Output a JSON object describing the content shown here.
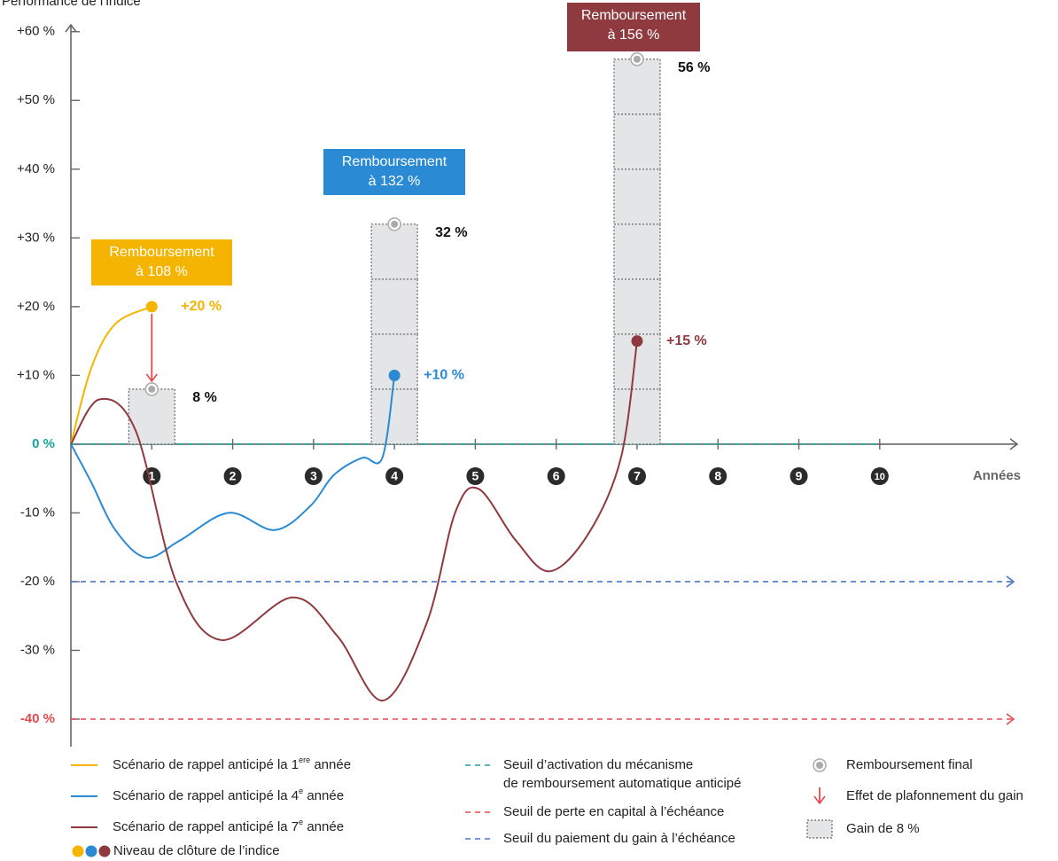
{
  "chart_data": {
    "type": "line",
    "ylabel": "Performance de l’indice",
    "xlabel": "Années",
    "xlim": [
      0,
      11.7
    ],
    "ylim": [
      -44,
      61
    ],
    "xticks": [
      1,
      2,
      3,
      4,
      5,
      6,
      7,
      8,
      9,
      10
    ],
    "yticks": [
      {
        "value": 60,
        "label": "+60 %"
      },
      {
        "value": 50,
        "label": "+50 %"
      },
      {
        "value": 40,
        "label": "+40 %"
      },
      {
        "value": 30,
        "label": "+30 %"
      },
      {
        "value": 20,
        "label": "+20 %"
      },
      {
        "value": 10,
        "label": "+10 %"
      },
      {
        "value": 0,
        "label": "0 %",
        "color": "#1aa39a"
      },
      {
        "value": -10,
        "label": "-10 %"
      },
      {
        "value": -20,
        "label": "-20 %"
      },
      {
        "value": -30,
        "label": "-30 %"
      },
      {
        "value": -40,
        "label": "-40 %",
        "color": "#e5484d"
      }
    ],
    "series": [
      {
        "legend": {
          "text": "Scénario de rappel anticipé la 1",
          "sup": "ere",
          "after": " année"
        },
        "color": "#f5b400",
        "x": [
          0,
          0.25,
          0.55,
          1
        ],
        "values": [
          0,
          11,
          17.5,
          20
        ],
        "end_label": "+20 %"
      },
      {
        "legend": {
          "text": "Scénario de rappel anticipé la 4",
          "sup": "e",
          "after": " année"
        },
        "color": "#2a8ad4",
        "x": [
          0,
          0.25,
          0.55,
          0.93,
          1.35,
          1.95,
          2.52,
          2.96,
          3.25,
          3.6,
          3.85,
          4
        ],
        "values": [
          0,
          -5.5,
          -12.5,
          -16.5,
          -14,
          -10,
          -12.5,
          -9,
          -4.5,
          -2,
          -2,
          10
        ],
        "end_label": "+10 %"
      },
      {
        "legend": {
          "text": "Scénario de rappel anticipé la 7",
          "sup": "e",
          "after": " année"
        },
        "color": "#8e3a3f",
        "x": [
          0,
          0.35,
          0.8,
          1.3,
          1.86,
          2.74,
          3.3,
          3.86,
          4.4,
          4.75,
          5.04,
          5.5,
          5.92,
          6.4,
          6.8,
          7
        ],
        "values": [
          0,
          6.5,
          2,
          -20,
          -28.5,
          -22.3,
          -28,
          -37.3,
          -26,
          -10,
          -6.5,
          -14,
          -18.5,
          -13,
          -2,
          15
        ],
        "end_label": "+15 %"
      }
    ],
    "closing_legend": "Niveau de clôture de l’indice",
    "gains": {
      "legend": "Gain de 8 %",
      "color": "#e4e5e6",
      "items": [
        {
          "x": 1,
          "segments": [
            8
          ],
          "total": 8,
          "total_label": "8 %"
        },
        {
          "x": 4,
          "segments": [
            8,
            8,
            8,
            8
          ],
          "total": 32,
          "total_label": "32 %"
        },
        {
          "x": 7,
          "segments": [
            8,
            8,
            8,
            8,
            8,
            8,
            8
          ],
          "total": 56,
          "total_label": "56 %"
        }
      ]
    },
    "final_legend": "Remboursement final",
    "cap_legend": "Effet de plafonnement du gain",
    "cap_color": "#e5484d",
    "thresholds": [
      {
        "value": 0,
        "color": "#1aa39a",
        "legend": [
          "Seuil d’activation du mécanisme",
          "de remboursement automatique anticipé"
        ]
      },
      {
        "value": -40,
        "color": "#e5484d",
        "legend": [
          "Seuil de perte en capital à l’échéance"
        ]
      },
      {
        "value": -20,
        "color": "#4a78c8",
        "legend": [
          "Seuil du paiement du gain à l’échéance"
        ]
      }
    ],
    "callouts": [
      {
        "lines": [
          "Remboursement",
          "à 108 %"
        ],
        "color": "#f5b400"
      },
      {
        "lines": [
          "Remboursement",
          "à 132 %"
        ],
        "color": "#2a8ad4"
      },
      {
        "lines": [
          "Remboursement",
          "à 156 %"
        ],
        "color": "#8e3a3f"
      }
    ]
  }
}
